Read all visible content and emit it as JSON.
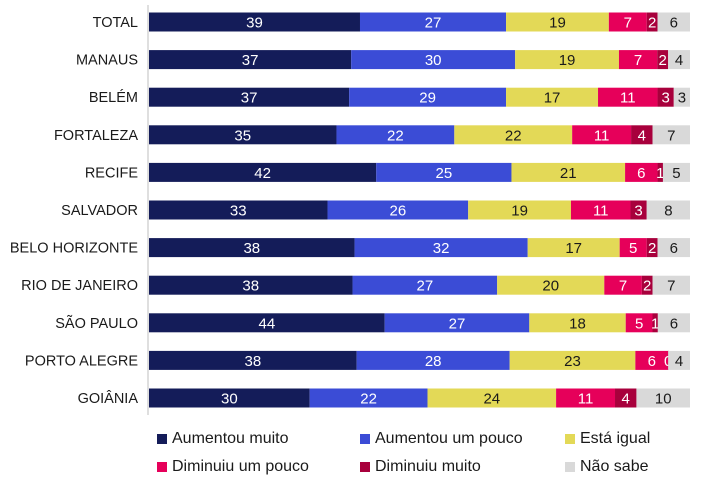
{
  "chart_data": {
    "type": "bar",
    "orientation": "horizontal",
    "stacked": true,
    "categories": [
      "TOTAL",
      "MANAUS",
      "BELÉM",
      "FORTALEZA",
      "RECIFE",
      "SALVADOR",
      "BELO HORIZONTE",
      "RIO DE JANEIRO",
      "SÃO PAULO",
      "PORTO ALEGRE",
      "GOIÂNIA"
    ],
    "series": [
      {
        "name": "Aumentou muito",
        "color": "#141c59",
        "text_color": "#ffffff",
        "values": [
          39,
          37,
          37,
          35,
          42,
          33,
          38,
          38,
          44,
          38,
          30
        ]
      },
      {
        "name": "Aumentou um pouco",
        "color": "#3b4cd6",
        "text_color": "#ffffff",
        "values": [
          27,
          30,
          29,
          22,
          25,
          26,
          32,
          27,
          27,
          28,
          22
        ]
      },
      {
        "name": "Está igual",
        "color": "#e3d957",
        "text_color": "#1a1a1a",
        "values": [
          19,
          19,
          17,
          22,
          21,
          19,
          17,
          20,
          18,
          23,
          24
        ]
      },
      {
        "name": "Diminuiu um pouco",
        "color": "#e6005a",
        "text_color": "#ffffff",
        "values": [
          7,
          7,
          11,
          11,
          6,
          11,
          5,
          7,
          5,
          6,
          11
        ]
      },
      {
        "name": "Diminuiu muito",
        "color": "#a8003c",
        "text_color": "#ffffff",
        "values": [
          2,
          2,
          3,
          4,
          1,
          3,
          2,
          2,
          1,
          0,
          4
        ]
      },
      {
        "name": "Não sabe",
        "color": "#d9d9d9",
        "text_color": "#1a1a1a",
        "values": [
          6,
          4,
          3,
          7,
          5,
          8,
          6,
          7,
          6,
          4,
          10
        ]
      }
    ],
    "legend": "bottom",
    "grid": false
  }
}
